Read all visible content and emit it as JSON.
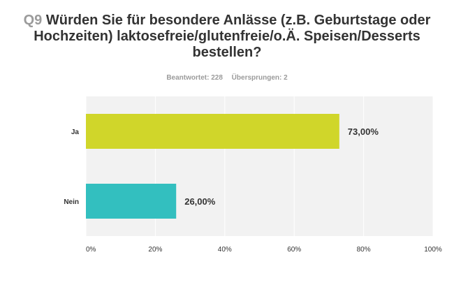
{
  "question": {
    "number": "Q9",
    "text": "Würden Sie für besondere Anlässe (z.B. Geburtstage oder Hochzeiten) laktosefreie/glutenfreie/o.Ä. Speisen/Desserts bestellen?"
  },
  "meta": {
    "answered": "Beantwortet: 228",
    "skipped": "Übersprungen: 2"
  },
  "chart_data": {
    "type": "bar",
    "orientation": "horizontal",
    "categories": [
      "Ja",
      "Nein"
    ],
    "values": [
      73.0,
      26.0
    ],
    "value_labels": [
      "73,00%",
      "26,00%"
    ],
    "colors": [
      "#d0d62a",
      "#33bfbf"
    ],
    "xlim": [
      0,
      100
    ],
    "xticks": [
      0,
      20,
      40,
      60,
      80,
      100
    ],
    "xtick_labels": [
      "0%",
      "20%",
      "40%",
      "60%",
      "80%",
      "100%"
    ],
    "grid": true
  }
}
